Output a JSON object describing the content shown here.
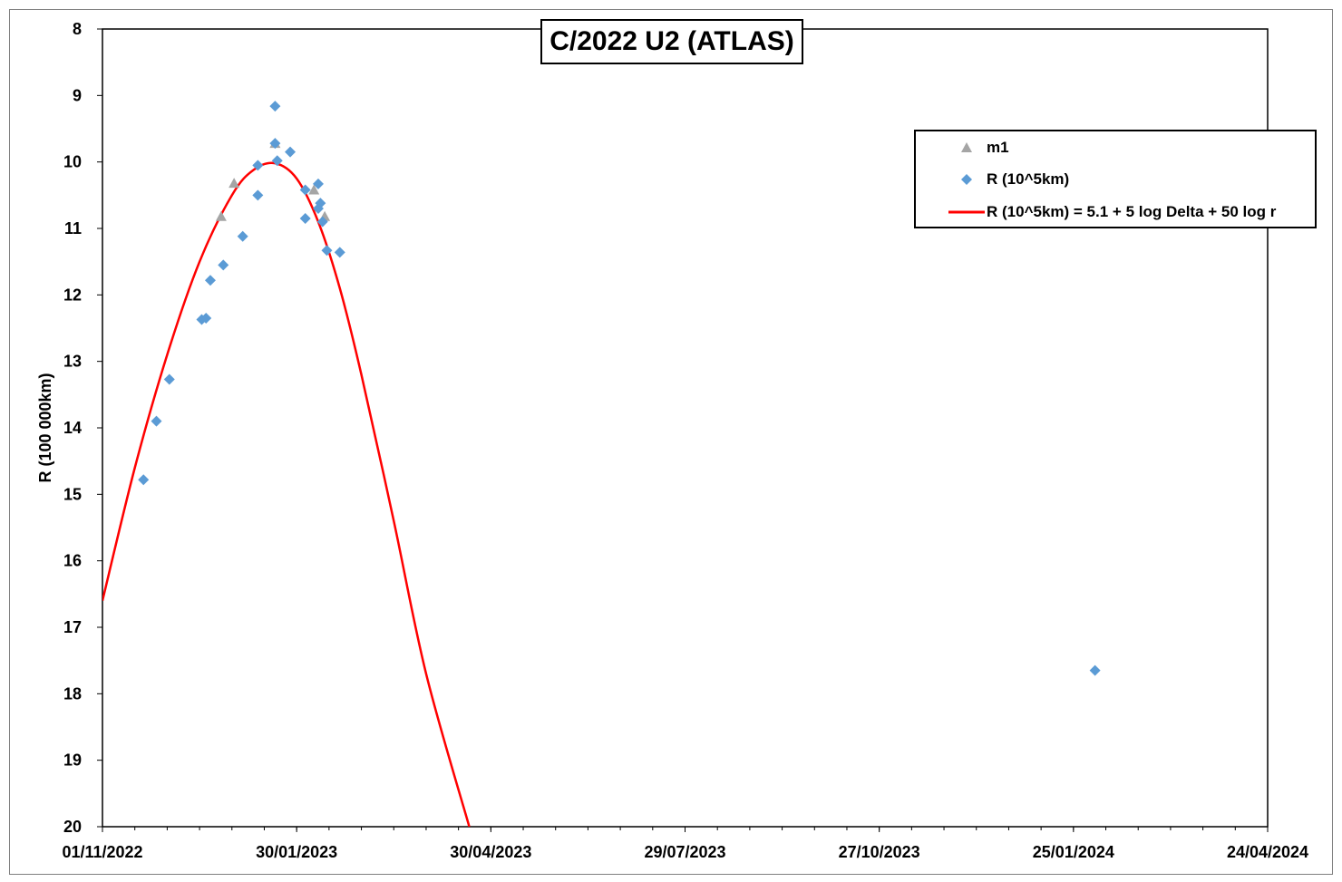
{
  "chart_data": {
    "type": "scatter",
    "title": "C/2022 U2 (ATLAS)",
    "xlabel": "",
    "ylabel": "R (100 000km)",
    "x_ticks": [
      "01/11/2022",
      "30/01/2023",
      "30/04/2023",
      "29/07/2023",
      "27/10/2023",
      "25/01/2024",
      "24/04/2024"
    ],
    "xlim": [
      "2022-11-01",
      "2024-04-24"
    ],
    "ylim": [
      8,
      20
    ],
    "y_ticks": [
      "8",
      "9",
      "10",
      "11",
      "12",
      "13",
      "14",
      "15",
      "16",
      "17",
      "18",
      "19",
      "20"
    ],
    "y_inverted": true,
    "grid": false,
    "legend_position": "top-right",
    "series": [
      {
        "name": "m1",
        "marker": "triangle",
        "color": "#a5a5a5",
        "points": [
          {
            "x": "2022-12-26",
            "y": 10.82
          },
          {
            "x": "2023-01-01",
            "y": 10.32
          },
          {
            "x": "2023-01-20",
            "y": 9.72
          },
          {
            "x": "2023-02-07",
            "y": 10.42
          },
          {
            "x": "2023-02-12",
            "y": 10.82
          }
        ]
      },
      {
        "name": "R (10^5km)",
        "marker": "diamond",
        "color": "#5b9bd5",
        "points": [
          {
            "x": "2022-11-20",
            "y": 14.78
          },
          {
            "x": "2022-11-26",
            "y": 13.9
          },
          {
            "x": "2022-12-02",
            "y": 13.27
          },
          {
            "x": "2022-12-17",
            "y": 12.37
          },
          {
            "x": "2022-12-19",
            "y": 12.35
          },
          {
            "x": "2022-12-21",
            "y": 11.78
          },
          {
            "x": "2022-12-27",
            "y": 11.55
          },
          {
            "x": "2023-01-05",
            "y": 11.12
          },
          {
            "x": "2023-01-12",
            "y": 10.5
          },
          {
            "x": "2023-01-12",
            "y": 10.05
          },
          {
            "x": "2023-01-20",
            "y": 9.16
          },
          {
            "x": "2023-01-20",
            "y": 9.72
          },
          {
            "x": "2023-01-21",
            "y": 9.98
          },
          {
            "x": "2023-01-27",
            "y": 9.85
          },
          {
            "x": "2023-02-03",
            "y": 10.42
          },
          {
            "x": "2023-02-03",
            "y": 10.85
          },
          {
            "x": "2023-02-09",
            "y": 10.33
          },
          {
            "x": "2023-02-09",
            "y": 10.7
          },
          {
            "x": "2023-02-10",
            "y": 10.62
          },
          {
            "x": "2023-02-11",
            "y": 10.9
          },
          {
            "x": "2023-02-13",
            "y": 11.33
          },
          {
            "x": "2023-02-19",
            "y": 11.36
          },
          {
            "x": "2024-01-35",
            "y": 17.65
          }
        ]
      },
      {
        "name": "R (10^5km) = 5.1 + 5 log Delta + 50 log r",
        "marker": "line",
        "color": "#ff0000",
        "points": [
          {
            "x": "2022-11-01",
            "y": 16.6
          },
          {
            "x": "2022-11-16",
            "y": 14.6
          },
          {
            "x": "2022-12-01",
            "y": 12.9
          },
          {
            "x": "2022-12-16",
            "y": 11.5
          },
          {
            "x": "2022-12-31",
            "y": 10.5
          },
          {
            "x": "2023-01-10",
            "y": 10.12
          },
          {
            "x": "2023-01-20",
            "y": 10.02
          },
          {
            "x": "2023-01-30",
            "y": 10.25
          },
          {
            "x": "2023-02-09",
            "y": 10.9
          },
          {
            "x": "2023-02-19",
            "y": 11.9
          },
          {
            "x": "2023-03-01",
            "y": 13.2
          },
          {
            "x": "2023-03-16",
            "y": 15.4
          },
          {
            "x": "2023-03-31",
            "y": 17.7
          },
          {
            "x": "2023-04-20",
            "y": 20.0
          }
        ]
      }
    ]
  }
}
